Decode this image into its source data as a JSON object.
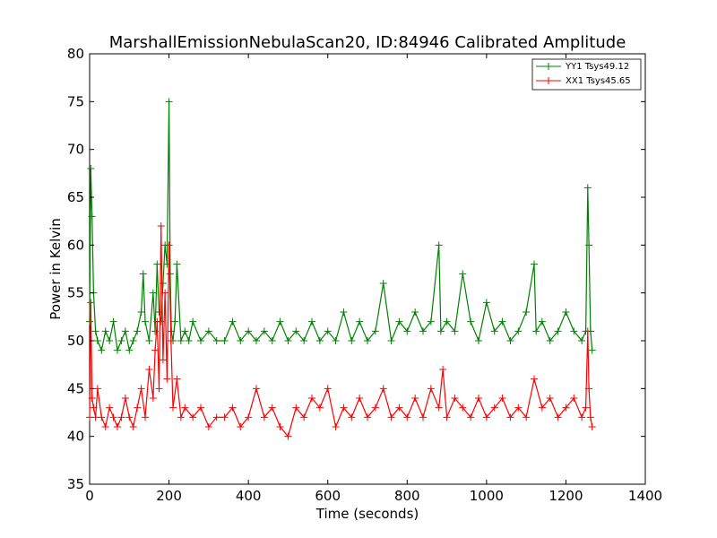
{
  "chart_data": {
    "type": "line",
    "title": "MarshallEmissionNebulaScan20, ID:84946 Calibrated Amplitude",
    "xlabel": "Time (seconds)",
    "ylabel": "Power in Kelvin",
    "xlim": [
      0,
      1400
    ],
    "ylim": [
      35,
      80
    ],
    "xticks": [
      0,
      200,
      400,
      600,
      800,
      1000,
      1200,
      1400
    ],
    "yticks": [
      35,
      40,
      45,
      50,
      55,
      60,
      65,
      70,
      75,
      80
    ],
    "grid": false,
    "legend_position": "top-right",
    "marker": "+",
    "series": [
      {
        "name": "YY1 Tsys49.12",
        "color": "#008000",
        "x": [
          0,
          3,
          6,
          10,
          15,
          20,
          30,
          40,
          50,
          60,
          70,
          80,
          90,
          100,
          110,
          120,
          130,
          135,
          140,
          150,
          160,
          165,
          170,
          175,
          180,
          185,
          190,
          195,
          200,
          203,
          206,
          210,
          215,
          220,
          230,
          240,
          250,
          260,
          280,
          300,
          320,
          340,
          360,
          380,
          400,
          420,
          440,
          460,
          480,
          500,
          520,
          540,
          560,
          580,
          600,
          620,
          640,
          660,
          680,
          700,
          720,
          740,
          760,
          780,
          800,
          820,
          840,
          860,
          880,
          885,
          900,
          920,
          940,
          960,
          980,
          1000,
          1020,
          1040,
          1060,
          1080,
          1100,
          1120,
          1125,
          1140,
          1160,
          1180,
          1200,
          1220,
          1240,
          1250,
          1255,
          1258,
          1262,
          1266
        ],
        "y": [
          52,
          68,
          63,
          55,
          51,
          50,
          49,
          51,
          50,
          52,
          49,
          50,
          51,
          49,
          50,
          51,
          53,
          57,
          52,
          50,
          55,
          51,
          58,
          53,
          52,
          56,
          60,
          58,
          75,
          57,
          51,
          50,
          52,
          58,
          50,
          51,
          50,
          52,
          50,
          51,
          50,
          50,
          52,
          50,
          51,
          50,
          51,
          50,
          52,
          50,
          51,
          50,
          52,
          50,
          51,
          50,
          53,
          50,
          52,
          50,
          51,
          56,
          50,
          52,
          51,
          53,
          51,
          52,
          60,
          51,
          52,
          51,
          57,
          52,
          50,
          54,
          51,
          52,
          50,
          51,
          53,
          58,
          51,
          52,
          50,
          51,
          53,
          51,
          50,
          51,
          66,
          60,
          51,
          49
        ]
      },
      {
        "name": "XX1 Tsys45.65",
        "color": "#ff0000",
        "x": [
          0,
          3,
          6,
          10,
          15,
          20,
          30,
          40,
          50,
          60,
          70,
          80,
          90,
          100,
          110,
          120,
          130,
          140,
          150,
          160,
          165,
          170,
          175,
          180,
          185,
          190,
          195,
          200,
          205,
          210,
          220,
          230,
          240,
          260,
          280,
          300,
          320,
          340,
          360,
          380,
          400,
          420,
          440,
          460,
          480,
          500,
          520,
          540,
          560,
          580,
          600,
          620,
          640,
          660,
          680,
          700,
          720,
          740,
          760,
          780,
          800,
          820,
          840,
          860,
          880,
          890,
          900,
          920,
          940,
          960,
          980,
          1000,
          1020,
          1040,
          1060,
          1080,
          1100,
          1120,
          1140,
          1160,
          1180,
          1200,
          1220,
          1240,
          1250,
          1255,
          1258,
          1262,
          1266
        ],
        "y": [
          42,
          54,
          44,
          43,
          42,
          45,
          42,
          41,
          43,
          42,
          41,
          42,
          44,
          42,
          41,
          43,
          45,
          42,
          47,
          44,
          49,
          52,
          45,
          62,
          48,
          55,
          46,
          60,
          50,
          43,
          46,
          42,
          43,
          42,
          43,
          41,
          42,
          42,
          43,
          41,
          42,
          45,
          42,
          43,
          41,
          40,
          43,
          42,
          44,
          43,
          45,
          41,
          43,
          42,
          44,
          42,
          43,
          45,
          42,
          43,
          42,
          44,
          42,
          45,
          43,
          47,
          42,
          44,
          43,
          42,
          44,
          42,
          43,
          44,
          42,
          43,
          42,
          46,
          43,
          44,
          42,
          43,
          44,
          42,
          43,
          51,
          45,
          42,
          41
        ]
      }
    ]
  }
}
